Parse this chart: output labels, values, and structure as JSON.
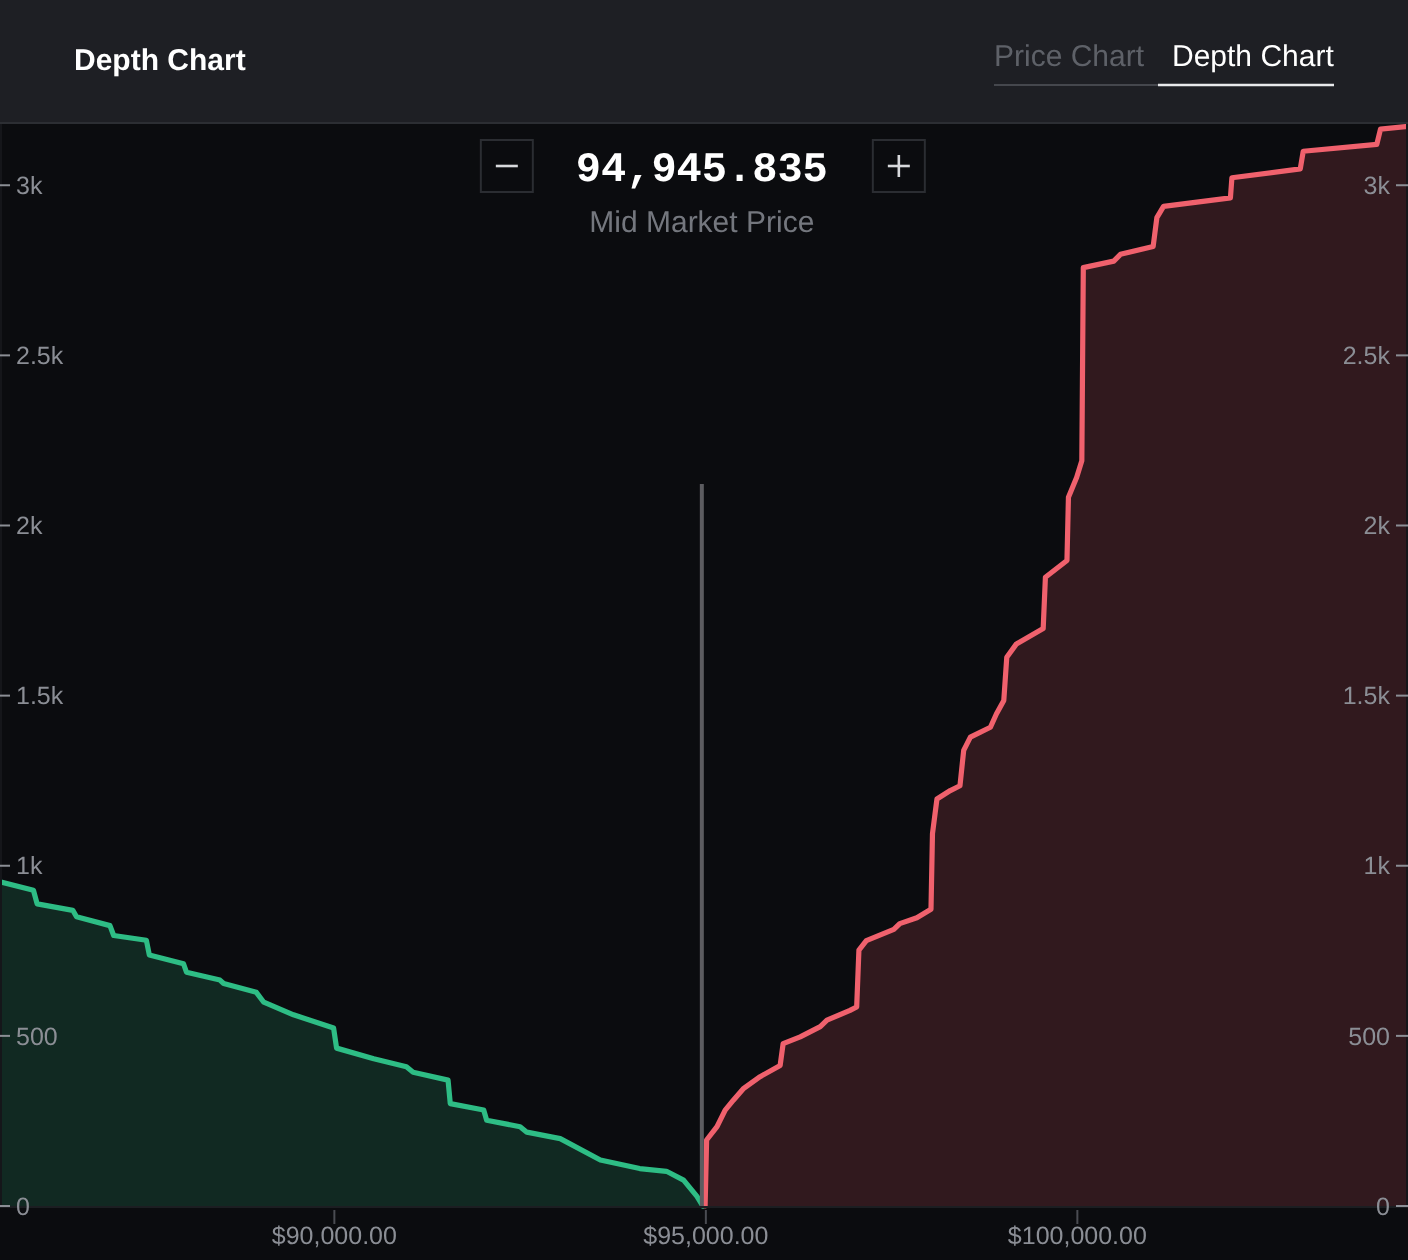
{
  "chart_data": {
    "type": "area",
    "title": "Depth Chart",
    "xlim": [
      85500,
      104450
    ],
    "xticks": [
      {
        "value": 90000,
        "label": "$90,000.00"
      },
      {
        "value": 95000,
        "label": "$95,000.00"
      },
      {
        "value": 100000,
        "label": "$100,000.00"
      }
    ],
    "ylim": [
      0,
      3180
    ],
    "yticks": [
      0,
      500,
      {
        "value": 1000,
        "label": "1k"
      },
      {
        "value": 1500,
        "label": "1.5k"
      },
      {
        "value": 2000,
        "label": "2k"
      },
      {
        "value": 2500,
        "label": "2.5k"
      },
      {
        "value": 3000,
        "label": "3k"
      }
    ],
    "y2lim": [
      0,
      3180
    ],
    "y2ticks": [
      0,
      500,
      {
        "value": 1000,
        "label": "1k"
      },
      {
        "value": 1500,
        "label": "1.5k"
      },
      {
        "value": 2000,
        "label": "2k"
      },
      {
        "value": 2500,
        "label": "2.5k"
      },
      {
        "value": 3000,
        "label": "3k"
      }
    ],
    "ref_lines": [
      {
        "axis": "x",
        "value": 94945.835,
        "color": "#5c5c60"
      }
    ],
    "annotations": [
      "94,945.835",
      "Mid Market Price",
      "Price Chart",
      "Depth Chart"
    ],
    "series": [
      {
        "color": "#2ebd85",
        "x": [
          85500,
          85950,
          86000,
          86480,
          86530,
          86980,
          87030,
          87470,
          87510,
          87970,
          88010,
          88460,
          88510,
          88950,
          89050,
          89450,
          89990,
          90030,
          90530,
          90970,
          91060,
          91530,
          91560,
          92010,
          92050,
          92500,
          92590,
          93040,
          93580,
          94110,
          94470,
          94700,
          94880,
          94960
        ],
        "values": [
          953,
          928,
          888,
          869,
          850,
          824,
          795,
          781,
          738,
          712,
          687,
          664,
          654,
          628,
          599,
          562,
          523,
          464,
          433,
          409,
          393,
          370,
          301,
          282,
          252,
          233,
          217,
          198,
          135,
          110,
          102,
          76,
          28,
          0
        ]
      },
      {
        "color": "#f0616d",
        "x": [
          94990,
          95010,
          95150,
          95260,
          95370,
          95510,
          95730,
          96000,
          96040,
          96270,
          96540,
          96630,
          96940,
          97030,
          97060,
          97160,
          97530,
          97610,
          97840,
          98030,
          98050,
          98110,
          98290,
          98420,
          98470,
          98560,
          98830,
          98910,
          99010,
          99050,
          99180,
          99540,
          99570,
          99860,
          99880,
          99990,
          100060,
          100080,
          100490,
          100580,
          101020,
          101070,
          101160,
          102060,
          102080,
          103000,
          103040,
          104030,
          104080,
          104450
        ],
        "values": [
          0,
          194,
          233,
          282,
          311,
          346,
          380,
          413,
          477,
          497,
          527,
          546,
          575,
          585,
          752,
          780,
          813,
          830,
          847,
          872,
          1094,
          1196,
          1221,
          1235,
          1339,
          1378,
          1407,
          1446,
          1486,
          1613,
          1652,
          1697,
          1848,
          1897,
          2083,
          2141,
          2190,
          2758,
          2777,
          2797,
          2820,
          2905,
          2938,
          2963,
          3022,
          3048,
          3100,
          3120,
          3165,
          3173
        ]
      }
    ]
  }
}
